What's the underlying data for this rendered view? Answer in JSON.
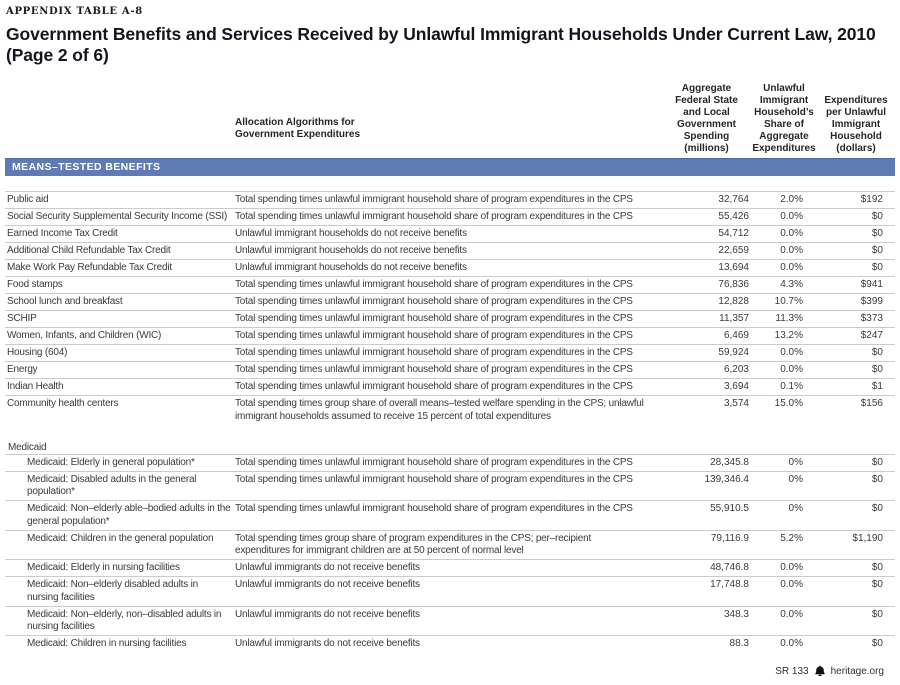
{
  "header": {
    "eyebrow": "APPENDIX TABLE A-8",
    "title": "Government Benefits and Services Received by Unlawful Immigrant Households Under Current Law, 2010 (Page 2 of 6)"
  },
  "colors": {
    "section_band": "#5e7bb4",
    "band_text": "#ffffff",
    "row_divider": "#cbcbcb"
  },
  "table": {
    "column_headers": {
      "algorithm": "Allocation Algorithms for Government Expenditures",
      "spending": "Aggregate Federal State and Local Government Spending (millions)",
      "share": "Unlawful Immigrant Household’s Share of Aggregate Expenditures",
      "per_household": "Expenditures per Unlawful Immigrant Household (dollars)"
    },
    "section_label": "MEANS–TESTED BENEFITS",
    "means_tested_rows": [
      {
        "program": "Public aid",
        "algorithm": "Total spending times unlawful immigrant household share of program expenditures in the CPS",
        "spending": "32,764",
        "share": "2.0%",
        "per_household": "$192"
      },
      {
        "program": "Social Security Supplemental Security Income (SSI)",
        "algorithm": "Total spending times unlawful immigrant household share of program expenditures in the CPS",
        "spending": "55,426",
        "share": "0.0%",
        "per_household": "$0"
      },
      {
        "program": "Earned Income Tax Credit",
        "algorithm": "Unlawful immigrant households do not receive benefits",
        "spending": "54,712",
        "share": "0.0%",
        "per_household": "$0"
      },
      {
        "program": "Additional Child Refundable Tax Credit",
        "algorithm": "Unlawful immigrant households do not receive benefits",
        "spending": "22,659",
        "share": "0.0%",
        "per_household": "$0"
      },
      {
        "program": "Make Work Pay Refundable Tax Credit",
        "algorithm": "Unlawful immigrant households do not receive benefits",
        "spending": "13,694",
        "share": "0.0%",
        "per_household": "$0"
      },
      {
        "program": "Food stamps",
        "algorithm": "Total spending times unlawful immigrant household share of program expenditures in the CPS",
        "spending": "76,836",
        "share": "4.3%",
        "per_household": "$941"
      },
      {
        "program": "School lunch and breakfast",
        "algorithm": "Total spending times unlawful immigrant household share of program expenditures in the CPS",
        "spending": "12,828",
        "share": "10.7%",
        "per_household": "$399"
      },
      {
        "program": "SCHIP",
        "algorithm": "Total spending times unlawful immigrant household share of program expenditures in the CPS",
        "spending": "11,357",
        "share": "11.3%",
        "per_household": "$373"
      },
      {
        "program": "Women, Infants, and Children (WIC)",
        "algorithm": "Total spending times unlawful immigrant household share of program expenditures in the CPS",
        "spending": "6,469",
        "share": "13.2%",
        "per_household": "$247"
      },
      {
        "program": "Housing (604)",
        "algorithm": "Total spending times unlawful immigrant household share of program expenditures in the CPS",
        "spending": "59,924",
        "share": "0.0%",
        "per_household": "$0"
      },
      {
        "program": "Energy",
        "algorithm": "Total spending times unlawful immigrant household share of program expenditures in the CPS",
        "spending": "6,203",
        "share": "0.0%",
        "per_household": "$0"
      },
      {
        "program": "Indian Health",
        "algorithm": "Total spending times unlawful immigrant household share of program expenditures in the CPS",
        "spending": "3,694",
        "share": "0.1%",
        "per_household": "$1"
      },
      {
        "program": "Community health centers",
        "algorithm": "Total spending times group share of overall means–tested welfare spending in the CPS; unlawful immigrant households assumed to receive 15 percent of total expenditures",
        "spending": "3,574",
        "share": "15.0%",
        "per_household": "$156"
      }
    ],
    "medicaid": {
      "label": "Medicaid",
      "rows": [
        {
          "program": "Medicaid: Elderly in general population*",
          "algorithm": "Total spending times unlawful immigrant household share of program expenditures in the CPS",
          "spending": "28,345.8",
          "share": "0%",
          "per_household": "$0"
        },
        {
          "program": "Medicaid: Disabled adults in the general population*",
          "algorithm": "Total spending times unlawful immigrant household share of program expenditures in the CPS",
          "spending": "139,346.4",
          "share": "0%",
          "per_household": "$0"
        },
        {
          "program": "Medicaid: Non–elderly able–bodied adults in the general population*",
          "algorithm": "Total spending times unlawful immigrant household share of program expenditures in the CPS",
          "spending": "55,910.5",
          "share": "0%",
          "per_household": "$0"
        },
        {
          "program": "Medicaid: Children in the general population",
          "algorithm": "Total spending times group share of program expenditures in the CPS; per–recipient expenditures for immigrant children are at 50 percent of normal level",
          "spending": "79,116.9",
          "share": "5.2%",
          "per_household": "$1,190"
        },
        {
          "program": "Medicaid: Elderly in nursing facilities",
          "algorithm": "Unlawful immigrants do not receive benefits",
          "spending": "48,746.8",
          "share": "0.0%",
          "per_household": "$0"
        },
        {
          "program": "Medicaid: Non–elderly disabled adults in nursing facilities",
          "algorithm": "Unlawful immigrants do not receive benefits",
          "spending": "17,748.8",
          "share": "0.0%",
          "per_household": "$0"
        },
        {
          "program": "Medicaid: Non–elderly, non–disabled adults in nursing facilities",
          "algorithm": "Unlawful immigrants do not receive benefits",
          "spending": "348.3",
          "share": "0.0%",
          "per_household": "$0"
        },
        {
          "program": "Medicaid: Children in nursing facilities",
          "algorithm": "Unlawful immigrants do not receive benefits",
          "spending": "88.3",
          "share": "0.0%",
          "per_household": "$0"
        }
      ]
    }
  },
  "footer": {
    "report_code": "SR 133",
    "site": "heritage.org"
  }
}
